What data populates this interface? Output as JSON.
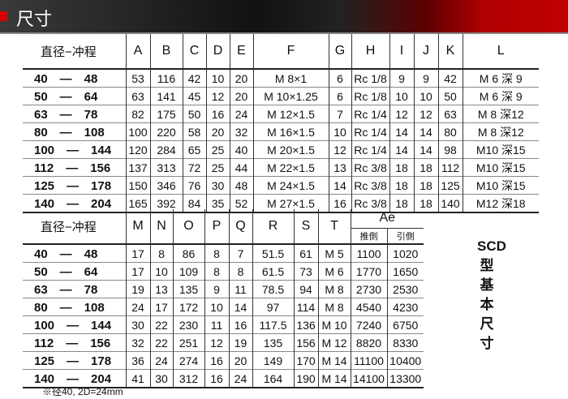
{
  "header": {
    "title": "尺寸"
  },
  "table1": {
    "columns": [
      "直径−冲程",
      "A",
      "B",
      "C",
      "D",
      "E",
      "F",
      "G",
      "H",
      "I",
      "J",
      "K",
      "L"
    ],
    "rows": [
      [
        "40　—　48",
        "53",
        "116",
        "42",
        "10",
        "20",
        "M  8×1",
        "6",
        "Rc 1/8",
        "9",
        "9",
        "42",
        "M 6 深  9"
      ],
      [
        "50　—　64",
        "63",
        "141",
        "45",
        "12",
        "20",
        "M 10×1.25",
        "6",
        "Rc 1/8",
        "10",
        "10",
        "50",
        "M 6 深  9"
      ],
      [
        "63　—　78",
        "82",
        "175",
        "50",
        "16",
        "24",
        "M 12×1.5",
        "7",
        "Rc 1/4",
        "12",
        "12",
        "63",
        "M 8 深12"
      ],
      [
        "80　—　108",
        "100",
        "220",
        "58",
        "20",
        "32",
        "M 16×1.5",
        "10",
        "Rc 1/4",
        "14",
        "14",
        "80",
        "M 8 深12"
      ],
      [
        "100　—　144",
        "120",
        "284",
        "65",
        "25",
        "40",
        "M 20×1.5",
        "12",
        "Rc 1/4",
        "14",
        "14",
        "98",
        "M10 深15"
      ],
      [
        "112　—　156",
        "137",
        "313",
        "72",
        "25",
        "44",
        "M 22×1.5",
        "13",
        "Rc 3/8",
        "18",
        "18",
        "112",
        "M10 深15"
      ],
      [
        "125　—　178",
        "150",
        "346",
        "76",
        "30",
        "48",
        "M 24×1.5",
        "14",
        "Rc 3/8",
        "18",
        "18",
        "125",
        "M10 深15"
      ],
      [
        "140　—　204",
        "165",
        "392",
        "84",
        "35",
        "52",
        "M 27×1.5",
        "16",
        "Rc 3/8",
        "18",
        "18",
        "140",
        "M12 深18"
      ]
    ]
  },
  "table2": {
    "columns": [
      "直径−冲程",
      "M",
      "N",
      "O",
      "P",
      "Q",
      "R",
      "S",
      "T",
      "Ae"
    ],
    "ae_sub": [
      "推側",
      "引側"
    ],
    "rows": [
      [
        "40　—　48",
        "17",
        "8",
        "86",
        "8",
        "7",
        "51.5",
        "61",
        "M  5",
        "1100",
        "1020"
      ],
      [
        "50　—　64",
        "17",
        "10",
        "109",
        "8",
        "8",
        "61.5",
        "73",
        "M  6",
        "1770",
        "1650"
      ],
      [
        "63　—　78",
        "19",
        "13",
        "135",
        "9",
        "11",
        "78.5",
        "94",
        "M  8",
        "2730",
        "2530"
      ],
      [
        "80　—　108",
        "24",
        "17",
        "172",
        "10",
        "14",
        "97",
        "114",
        "M  8",
        "4540",
        "4230"
      ],
      [
        "100　—　144",
        "30",
        "22",
        "230",
        "11",
        "16",
        "117.5",
        "136",
        "M 10",
        "7240",
        "6750"
      ],
      [
        "112　—　156",
        "32",
        "22",
        "251",
        "12",
        "19",
        "135",
        "156",
        "M 12",
        "8820",
        "8330"
      ],
      [
        "125　—　178",
        "36",
        "24",
        "274",
        "16",
        "20",
        "149",
        "170",
        "M 14",
        "11100",
        "10400"
      ],
      [
        "140　—　204",
        "41",
        "30",
        "312",
        "16",
        "24",
        "164",
        "190",
        "M 14",
        "14100",
        "13300"
      ]
    ]
  },
  "side_label": [
    "SCD",
    "型",
    "基",
    "本",
    "尺",
    "寸"
  ],
  "footnote": "※径40, 2D=24mm"
}
